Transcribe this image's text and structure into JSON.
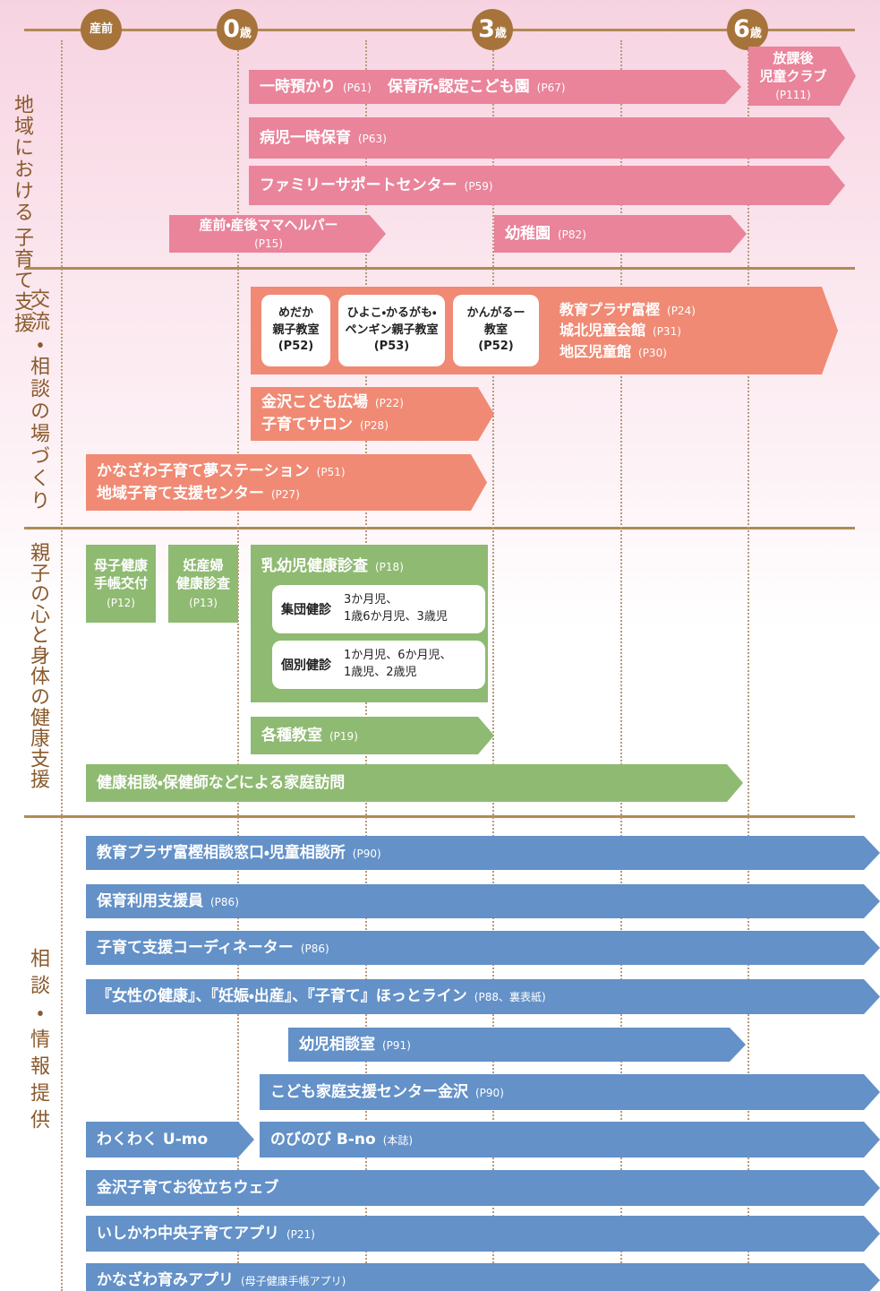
{
  "timeline": {
    "prenatal": "産前",
    "ages": [
      {
        "num": "0",
        "unit": "歳"
      },
      {
        "num": "3",
        "unit": "歳"
      },
      {
        "num": "6",
        "unit": "歳"
      }
    ]
  },
  "sections": [
    {
      "label": [
        "地域における",
        "子育て支援"
      ],
      "items": [
        {
          "lines": [
            [
              {
                "text": "一時預かり",
                "ref": "(P61)"
              },
              {
                "text": "保育所・認定こども園",
                "ref": "(P67)"
              }
            ]
          ]
        },
        {
          "lines": [
            [
              {
                "text": "放課後"
              }
            ],
            [
              {
                "text": "児童クラブ"
              }
            ],
            [
              {
                "ref": "(P111)"
              }
            ]
          ]
        },
        {
          "lines": [
            [
              {
                "text": "病児一時保育",
                "ref": "(P63)"
              }
            ]
          ]
        },
        {
          "lines": [
            [
              {
                "text": "ファミリーサポートセンター",
                "ref": "(P59)"
              }
            ]
          ]
        },
        {
          "lines": [
            [
              {
                "text": "産前・産後ママヘルパー"
              }
            ],
            [
              {
                "ref": "(P15)"
              }
            ]
          ]
        },
        {
          "lines": [
            [
              {
                "text": "幼稚園",
                "ref": "(P82)"
              }
            ]
          ]
        }
      ]
    },
    {
      "label": [
        "交流・相談の場づくり"
      ],
      "items": [
        {
          "boxes": [
            {
              "lines": [
                "めだか",
                "親子教室",
                "(P52)"
              ]
            },
            {
              "lines": [
                "ひよこ・かるがも・",
                "ペンギン親子教室",
                "(P53)"
              ]
            },
            {
              "lines": [
                "かんがるー",
                "教室",
                "(P52)"
              ]
            }
          ],
          "lines": [
            [
              {
                "text": "教育プラザ富樫",
                "ref": "(P24)"
              }
            ],
            [
              {
                "text": "城北児童会館",
                "ref": "(P31)"
              }
            ],
            [
              {
                "text": "地区児童館",
                "ref": "(P30)"
              }
            ]
          ]
        },
        {
          "lines": [
            [
              {
                "text": "金沢こども広場",
                "ref": "(P22)"
              }
            ],
            [
              {
                "text": "子育てサロン",
                "ref": "(P28)"
              }
            ]
          ]
        },
        {
          "lines": [
            [
              {
                "text": "かなざわ子育て夢ステーション",
                "ref": "(P51)"
              }
            ],
            [
              {
                "text": "地域子育て支援センター",
                "ref": "(P27)"
              }
            ]
          ]
        }
      ]
    },
    {
      "label": [
        "親子の心と身体の健康支援"
      ],
      "items": [
        {
          "lines": [
            [
              {
                "text": "母子健康"
              }
            ],
            [
              {
                "text": "手帳交付"
              }
            ],
            [
              {
                "ref": "(P12)"
              }
            ]
          ]
        },
        {
          "lines": [
            [
              {
                "text": "妊産婦"
              }
            ],
            [
              {
                "text": "健康診査"
              }
            ],
            [
              {
                "ref": "(P13)"
              }
            ]
          ]
        },
        {
          "lines": [
            [
              {
                "text": "乳幼児健康診査",
                "ref": "(P18)"
              }
            ]
          ],
          "checkups": [
            {
              "name": "集団健診",
              "lines": [
                "3か月児、",
                "1歳6か月児、3歳児"
              ]
            },
            {
              "name": "個別健診",
              "lines": [
                "1か月児、6か月児、",
                "1歳児、2歳児"
              ]
            }
          ]
        },
        {
          "lines": [
            [
              {
                "text": "各種教室",
                "ref": "(P19)"
              }
            ]
          ]
        },
        {
          "lines": [
            [
              {
                "text": "健康相談・保健師などによる家庭訪問"
              }
            ]
          ]
        }
      ]
    },
    {
      "label": [
        "相談・情報提供"
      ],
      "items": [
        {
          "lines": [
            [
              {
                "text": "教育プラザ富樫相談窓口・児童相談所",
                "ref": "(P90)"
              }
            ]
          ]
        },
        {
          "lines": [
            [
              {
                "text": "保育利用支援員",
                "ref": "(P86)"
              }
            ]
          ]
        },
        {
          "lines": [
            [
              {
                "text": "子育て支援コーディネーター",
                "ref": "(P86)"
              }
            ]
          ]
        },
        {
          "lines": [
            [
              {
                "text": "『女性の健康』、『妊娠・出産』、『子育て』ほっとライン",
                "ref": "(P88、裏表紙)"
              }
            ]
          ]
        },
        {
          "lines": [
            [
              {
                "text": "幼児相談室",
                "ref": "(P91)"
              }
            ]
          ]
        },
        {
          "lines": [
            [
              {
                "text": "こども家庭支援センター金沢",
                "ref": "(P90)"
              }
            ]
          ]
        },
        {
          "lines": [
            [
              {
                "text": "わくわく U-mo"
              }
            ]
          ]
        },
        {
          "lines": [
            [
              {
                "text": "のびのび B-no",
                "ref": "(本誌)"
              }
            ]
          ]
        },
        {
          "lines": [
            [
              {
                "text": "金沢子育てお役立ちウェブ"
              }
            ]
          ]
        },
        {
          "lines": [
            [
              {
                "text": "いしかわ中央子育てアプリ",
                "ref": "(P21)"
              }
            ]
          ]
        },
        {
          "lines": [
            [
              {
                "text": "かなざわ育みアプリ",
                "ref": "(母子健康手帳アプリ)"
              }
            ]
          ]
        }
      ]
    }
  ]
}
